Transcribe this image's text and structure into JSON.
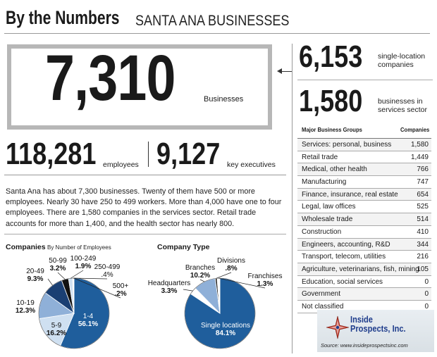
{
  "header": {
    "title_bold": "By the Numbers",
    "title_sub": "SANTA ANA BUSINESSES"
  },
  "headline": {
    "value": "7,310",
    "label": "Businesses"
  },
  "side_stats": [
    {
      "value": "6,153",
      "label_line1": "single-location",
      "label_line2": "companies"
    },
    {
      "value": "1,580",
      "label_line1": "businesses in",
      "label_line2": "services sector"
    }
  ],
  "employees": {
    "value": "118,281",
    "label": "employees"
  },
  "executives": {
    "value": "9,127",
    "label": "key executives"
  },
  "paragraph": "Santa Ana has about 7,300 businesses. Twenty of them have 500 or more employees. Nearly 30 have 250 to 499 workers. More than 4,000 have one to four employees. There are 1,580 companies in the services sector. Retail trade accounts for more than 1,400, and the health sector has nearly 800.",
  "colors": {
    "dark_blue": "#1f5e9c",
    "light_blue": "#8fb0d8",
    "pale_blue": "#cfe0f1",
    "navy": "#1a3f73",
    "black": "#111111",
    "white": "#ffffff",
    "gray": "#b7b7b7"
  },
  "chart_data": [
    {
      "type": "pie",
      "title": "Companies",
      "subtitle": "By Number of Employees",
      "slices": [
        {
          "label": "1-4",
          "value": 56.1,
          "display": "56.1%"
        },
        {
          "label": "5-9",
          "value": 16.2,
          "display": "16.2%"
        },
        {
          "label": "10-19",
          "value": 12.3,
          "display": "12.3%"
        },
        {
          "label": "20-49",
          "value": 9.3,
          "display": "9.3%"
        },
        {
          "label": "50-99",
          "value": 3.2,
          "display": "3.2%"
        },
        {
          "label": "100-249",
          "value": 1.9,
          "display": "1.9%"
        },
        {
          "label": "250-499",
          "value": 0.4,
          "display": ".4%"
        },
        {
          "label": "500+",
          "value": 0.2,
          "display": ".2%"
        }
      ]
    },
    {
      "type": "pie",
      "title": "Company Type",
      "slices": [
        {
          "label": "Single locations",
          "value": 84.1,
          "display": "84.1%"
        },
        {
          "label": "Headquarters",
          "value": 3.3,
          "display": "3.3%"
        },
        {
          "label": "Branches",
          "value": 10.2,
          "display": "10.2%"
        },
        {
          "label": "Divisions",
          "value": 0.8,
          "display": ".8%"
        },
        {
          "label": "Franchises",
          "value": 1.3,
          "display": "1.3%"
        }
      ]
    },
    {
      "type": "table",
      "columns": [
        "Major Business Groups",
        "Companies"
      ],
      "rows": [
        {
          "group": "Services: personal, business",
          "companies": "1,580"
        },
        {
          "group": "Retail trade",
          "companies": "1,449"
        },
        {
          "group": "Medical, other health",
          "companies": "766"
        },
        {
          "group": "Manufacturing",
          "companies": "747"
        },
        {
          "group": "Finance, insurance, real estate",
          "companies": "654"
        },
        {
          "group": "Legal, law offices",
          "companies": "525"
        },
        {
          "group": "Wholesale trade",
          "companies": "514"
        },
        {
          "group": "Construction",
          "companies": "410"
        },
        {
          "group": "Engineers, accounting, R&D",
          "companies": "344"
        },
        {
          "group": "Transport, telecom, utilities",
          "companies": "216"
        },
        {
          "group": "Agriculture, veterinarians, fish, mining",
          "companies": "105"
        },
        {
          "group": "Education, social services",
          "companies": "0"
        },
        {
          "group": "Government",
          "companies": "0"
        },
        {
          "group": "Not classified",
          "companies": "0"
        }
      ]
    }
  ],
  "logo": {
    "line1": "Inside",
    "line2": "Prospects, Inc."
  },
  "source": "Source: www.insideprospectsinc.com"
}
